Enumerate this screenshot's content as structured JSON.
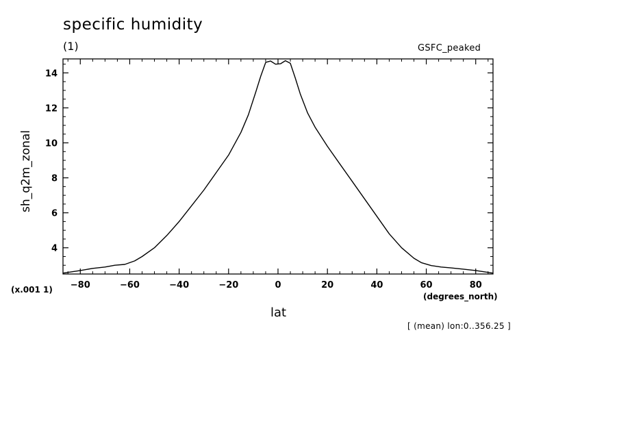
{
  "header": {
    "title": "specific humidity",
    "subtitle": "(1)",
    "dataset": "GSFC_peaked",
    "scale_note": "(x.001 1)",
    "x_units": "(degrees_north)",
    "footer": "[ (mean) lon:0..356.25 ]"
  },
  "chart_data": {
    "type": "line",
    "title": "specific humidity",
    "xlabel": "lat",
    "ylabel": "sh_q2m_zonal",
    "xlim": [
      -87,
      87
    ],
    "ylim": [
      2.5,
      14.8
    ],
    "xticks": [
      -80,
      -60,
      -40,
      -20,
      0,
      20,
      40,
      60,
      80
    ],
    "yticks": [
      4,
      6,
      8,
      10,
      12,
      14
    ],
    "grid": false,
    "series": [
      {
        "x": [
          -87,
          -80,
          -75,
          -70,
          -66,
          -62,
          -58,
          -55,
          -50,
          -45,
          -40,
          -35,
          -30,
          -25,
          -20,
          -15,
          -12,
          -9,
          -7,
          -5,
          -3,
          -1,
          1,
          3,
          5,
          7,
          9,
          12,
          15,
          20,
          25,
          30,
          35,
          40,
          45,
          50,
          55,
          58,
          62,
          66,
          70,
          75,
          80,
          87
        ],
        "y": [
          2.55,
          2.7,
          2.82,
          2.9,
          3.0,
          3.05,
          3.25,
          3.5,
          4.0,
          4.7,
          5.5,
          6.4,
          7.3,
          8.3,
          9.3,
          10.6,
          11.6,
          12.9,
          13.8,
          14.6,
          14.68,
          14.5,
          14.52,
          14.7,
          14.55,
          13.7,
          12.8,
          11.7,
          10.9,
          9.8,
          8.8,
          7.8,
          6.8,
          5.8,
          4.8,
          4.0,
          3.4,
          3.15,
          2.98,
          2.9,
          2.85,
          2.78,
          2.7,
          2.55
        ]
      }
    ]
  }
}
